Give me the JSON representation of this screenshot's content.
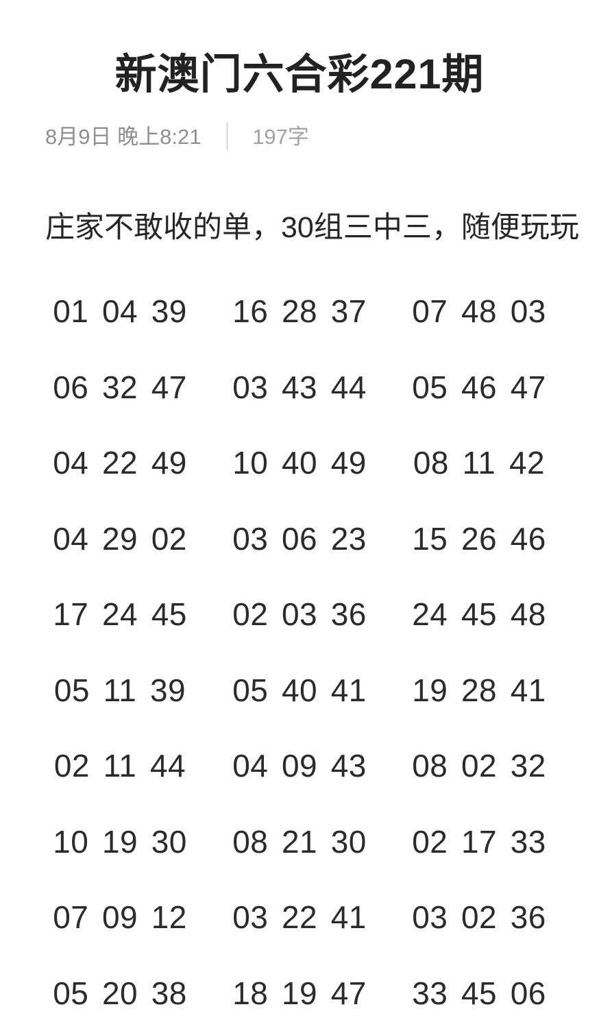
{
  "page": {
    "title": "新澳门六合彩221期",
    "meta": {
      "date": "8月9日 晚上8:21",
      "divider": "│",
      "word_count": "197字"
    },
    "description": "庄家不敢收的单，30组三中三，随便玩玩",
    "colors": {
      "background": "#ffffff",
      "title_text": "#222222",
      "body_text": "#2b2b2b",
      "meta_date_text": "#8f8f8f",
      "meta_count_text": "#a3a3a3",
      "divider": "#d9d9d9"
    },
    "number_rows": [
      [
        "01 04 39",
        "16 28 37",
        "07 48 03"
      ],
      [
        "06 32 47",
        "03 43 44",
        "05 46 47"
      ],
      [
        "04 22 49",
        "10 40 49",
        "08 11 42"
      ],
      [
        "04 29 02",
        "03 06 23",
        "15 26 46"
      ],
      [
        "17 24 45",
        "02 03 36",
        "24 45 48"
      ],
      [
        "05 11 39",
        "05 40 41",
        "19 28 41"
      ],
      [
        "02 11 44",
        "04 09 43",
        "08 02 32"
      ],
      [
        "10 19 30",
        "08 21 30",
        "02 17 33"
      ],
      [
        "07 09 12",
        "03 22 41",
        "03 02 36"
      ],
      [
        "05 20 38",
        "18 19 47",
        "33 45 06"
      ]
    ]
  }
}
